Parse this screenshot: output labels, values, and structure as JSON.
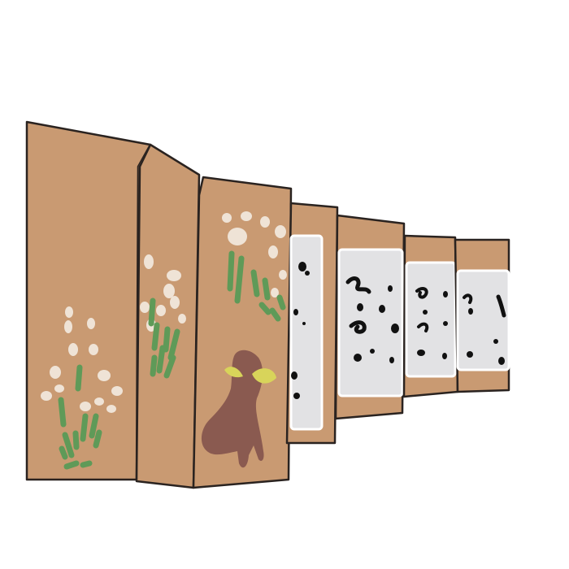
{
  "scene": {
    "subject": "folding-screen",
    "panel_count": 7,
    "palette": {
      "background": "#ffffff",
      "wood": "#c99a72",
      "wood_dark": "#b8845d",
      "outline": "#2a2320",
      "leaf_green": "#5f9a58",
      "blossom": "#efe3d6",
      "creature": "#8a5a50",
      "creature_accent": "#d8d45a",
      "paper": "#e2e2e4",
      "ink": "#111111"
    }
  }
}
